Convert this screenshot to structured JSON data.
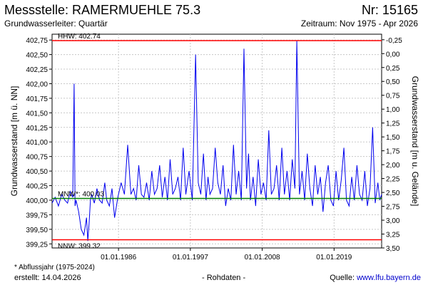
{
  "header": {
    "title": "Messstelle: RAMERMUEHLE 75.3",
    "station_no": "Nr: 15165",
    "aquifer": "Grundwasserleiter: Quartär",
    "period": "Zeitraum: Nov 1975 - Apr 2026"
  },
  "footer": {
    "footnote": "* Abflussjahr (1975-2024)",
    "created": "erstellt:  14.04.2026",
    "raw_data": "- Rohdaten -",
    "source_label": "Quelle: ",
    "source_link": "www.lfu.bayern.de"
  },
  "colors": {
    "series": "#0000ee",
    "extreme_lines": "#ff0000",
    "mean_line": "#008000",
    "grid": "#c8c8c8"
  },
  "chart_data": {
    "type": "line",
    "title": "Messstelle: RAMERMUEHLE 75.3",
    "ylabel": "Grundwasserstand [m ü. NN]",
    "y2label": "Grundwasserstand [m u. Gelände]",
    "xlim": [
      1975.83,
      2026.28
    ],
    "ylim": [
      399.18,
      402.85
    ],
    "y2lim": [
      -0.35,
      3.5
    ],
    "y_ticks": [
      "399,25",
      "399,50",
      "399,75",
      "400,00",
      "400,25",
      "400,50",
      "400,75",
      "401,00",
      "401,25",
      "401,50",
      "401,75",
      "402,00",
      "402,25",
      "402,50",
      "402,75"
    ],
    "y2_ticks": [
      "-0,25",
      "0,00",
      "0,25",
      "0,50",
      "0,75",
      "1,00",
      "1,25",
      "1,50",
      "1,75",
      "2,00",
      "2,25",
      "2,50",
      "2,75",
      "3,00",
      "3,25",
      "3,50"
    ],
    "x_tick_labels": [
      "01.01.1986",
      "01.01.1997",
      "01.01.2008",
      "01.01.2019"
    ],
    "x_ticks": [
      1986,
      1997,
      2008,
      2019
    ],
    "grid": true,
    "reference_lines": [
      {
        "label": "HHW: 402.74",
        "value": 402.74
      },
      {
        "label": "MNW*: 400.03",
        "value": 400.03
      },
      {
        "label": "NNW: 399.32",
        "value": 399.32
      }
    ],
    "series": [
      {
        "x": [
          1975.83,
          1976.3,
          1976.8,
          1977.3,
          1977.8,
          1978.2,
          1978.6,
          1979.0,
          1979.2,
          1979.35,
          1979.5,
          1979.9,
          1980.3,
          1980.7,
          1981.1,
          1981.3,
          1981.5,
          1981.7,
          1981.9,
          1982.3,
          1982.7,
          1983.1,
          1983.5,
          1983.9,
          1984.2,
          1984.6,
          1985.0,
          1985.4,
          1985.9,
          1986.4,
          1986.9,
          1987.4,
          1987.9,
          1988.3,
          1988.7,
          1989.1,
          1989.5,
          1989.9,
          1990.3,
          1990.7,
          1991.1,
          1991.5,
          1991.9,
          1992.3,
          1992.7,
          1993.1,
          1993.5,
          1993.9,
          1994.3,
          1994.7,
          1995.1,
          1995.5,
          1995.9,
          1996.3,
          1996.8,
          1997.3,
          1997.8,
          1998.2,
          1998.6,
          1999.0,
          1999.4,
          1999.7,
          2000.0,
          2000.4,
          2000.8,
          2001.2,
          2001.6,
          2002.0,
          2002.4,
          2002.8,
          2003.2,
          2003.6,
          2004.0,
          2004.4,
          2004.8,
          2005.2,
          2005.6,
          2005.9,
          2006.2,
          2006.6,
          2007.0,
          2007.4,
          2007.8,
          2008.2,
          2008.6,
          2009.0,
          2009.4,
          2009.8,
          2010.2,
          2010.6,
          2011.0,
          2011.4,
          2011.8,
          2012.2,
          2012.6,
          2013.0,
          2013.3,
          2013.7,
          2014.1,
          2014.5,
          2014.9,
          2015.3,
          2015.7,
          2016.1,
          2016.5,
          2016.9,
          2017.3,
          2017.7,
          2018.1,
          2018.5,
          2018.9,
          2019.3,
          2019.7,
          2020.1,
          2020.5,
          2020.9,
          2021.3,
          2021.7,
          2022.1,
          2022.5,
          2022.9,
          2023.3,
          2023.7,
          2024.1,
          2024.5,
          2024.9,
          2025.3,
          2025.7,
          2026.0,
          2026.28
        ],
        "y": [
          399.95,
          400.05,
          399.9,
          400.1,
          400.0,
          399.95,
          400.15,
          400.05,
          402.0,
          399.9,
          400.0,
          399.8,
          399.5,
          399.4,
          399.7,
          399.3,
          399.6,
          400.0,
          400.1,
          399.95,
          400.2,
          400.0,
          399.95,
          400.3,
          400.0,
          399.9,
          400.2,
          399.7,
          400.05,
          400.3,
          400.1,
          400.95,
          400.1,
          400.2,
          400.0,
          400.6,
          400.1,
          400.05,
          400.3,
          400.0,
          400.5,
          400.1,
          400.2,
          400.6,
          400.05,
          400.4,
          400.0,
          400.7,
          400.1,
          400.2,
          400.4,
          400.0,
          400.9,
          400.1,
          400.5,
          400.0,
          402.5,
          400.3,
          400.1,
          400.8,
          400.0,
          400.4,
          400.1,
          400.2,
          400.9,
          400.3,
          400.1,
          400.6,
          399.9,
          400.2,
          400.0,
          400.95,
          400.1,
          400.5,
          400.0,
          402.6,
          400.2,
          400.8,
          400.0,
          400.4,
          399.9,
          400.7,
          400.1,
          400.3,
          400.0,
          401.2,
          400.1,
          400.2,
          400.6,
          400.0,
          400.9,
          400.1,
          400.5,
          400.0,
          400.7,
          400.2,
          402.74,
          400.1,
          400.5,
          400.0,
          400.8,
          400.2,
          399.9,
          400.6,
          400.1,
          400.4,
          399.8,
          400.3,
          400.6,
          400.0,
          399.9,
          400.5,
          400.0,
          400.35,
          400.9,
          400.0,
          399.9,
          400.4,
          400.0,
          400.6,
          400.1,
          400.0,
          400.5,
          399.9,
          400.2,
          401.25,
          399.95,
          400.3,
          400.0,
          400.1
        ]
      }
    ]
  }
}
